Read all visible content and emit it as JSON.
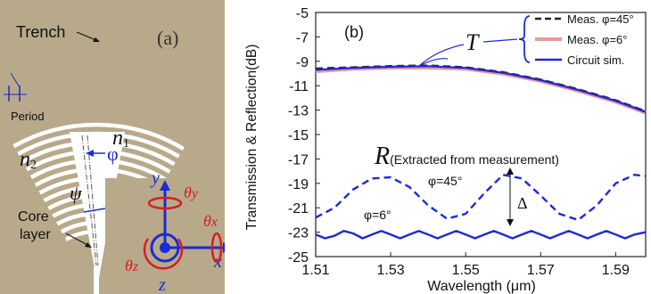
{
  "panel_a": {
    "label": "(a)",
    "trench_label": "Trench",
    "period_label": "Period",
    "n1_main": "n",
    "n1_sub": "1",
    "n2_main": "n",
    "n2_sub": "2",
    "phi_label": "φ",
    "psi_label": "ψ",
    "core_label_line1": "Core",
    "core_label_line2": "layer",
    "axes": {
      "y": "y",
      "x": "x",
      "z": "z",
      "theta": "θ",
      "theta_y_sub": "y",
      "theta_x_sub": "x",
      "theta_z_sub": "z"
    },
    "colors": {
      "background": "#b8a98a",
      "trench": "#ffffff",
      "axis_blue": "#1c2bd6",
      "rotation_red": "#d42020"
    }
  },
  "panel_b": {
    "label": "(b)",
    "T_label": "T",
    "R_label": "R",
    "R_note": "(Extracted from measurement)",
    "phi45_label": "φ=45°",
    "phi6_label": "φ=6°",
    "delta_label": "Δ"
  },
  "chart_data": {
    "type": "line",
    "xlabel": "Wavelength (μm)",
    "ylabel": "Transmission & Reflection(dB)",
    "xlim": [
      1.51,
      1.598
    ],
    "ylim": [
      -25,
      -5
    ],
    "xticks": [
      "1.51",
      "1.53",
      "1.55",
      "1.57",
      "1.59"
    ],
    "yticks": [
      "-5",
      "-7",
      "-9",
      "-11",
      "-13",
      "-15",
      "-17",
      "-19",
      "-21",
      "-23",
      "-25"
    ],
    "legend_position": "top-right",
    "series": [
      {
        "name": "Meas. φ=45°",
        "style": "dashed",
        "color": "#222222",
        "x": [
          1.51,
          1.52,
          1.53,
          1.54,
          1.55,
          1.56,
          1.57,
          1.58,
          1.59,
          1.598
        ],
        "y": [
          -9.6,
          -9.5,
          -9.4,
          -9.35,
          -9.5,
          -9.9,
          -10.5,
          -11.3,
          -12.2,
          -13.1
        ]
      },
      {
        "name": "Meas. φ=6°",
        "style": "solid",
        "color": "#e89a9a",
        "x": [
          1.51,
          1.52,
          1.53,
          1.54,
          1.55,
          1.56,
          1.57,
          1.58,
          1.59,
          1.598
        ],
        "y": [
          -9.8,
          -9.6,
          -9.5,
          -9.5,
          -9.6,
          -10.0,
          -10.6,
          -11.4,
          -12.3,
          -13.2
        ]
      },
      {
        "name": "Circuit sim.",
        "style": "solid",
        "color": "#1c2bd6",
        "x": [
          1.51,
          1.52,
          1.53,
          1.54,
          1.55,
          1.56,
          1.57,
          1.58,
          1.59,
          1.598
        ],
        "y": [
          -9.7,
          -9.55,
          -9.45,
          -9.4,
          -9.55,
          -9.95,
          -10.55,
          -11.35,
          -12.25,
          -13.15
        ]
      },
      {
        "name": "R φ=45°",
        "style": "dashed",
        "color": "#1c2bd6",
        "x": [
          1.51,
          1.515,
          1.52,
          1.525,
          1.53,
          1.535,
          1.54,
          1.545,
          1.55,
          1.555,
          1.56,
          1.565,
          1.57,
          1.575,
          1.58,
          1.585,
          1.59,
          1.595,
          1.598
        ],
        "y": [
          -21.8,
          -21.0,
          -19.5,
          -18.6,
          -18.5,
          -19.3,
          -20.8,
          -21.9,
          -21.5,
          -19.8,
          -18.3,
          -18.6,
          -20.0,
          -21.5,
          -22.0,
          -20.8,
          -19.0,
          -18.3,
          -18.4
        ]
      },
      {
        "name": "R φ=6°",
        "style": "solid",
        "color": "#1c2bd6",
        "x": [
          1.51,
          1.5125,
          1.515,
          1.5175,
          1.52,
          1.5225,
          1.525,
          1.5275,
          1.53,
          1.5325,
          1.535,
          1.5375,
          1.54,
          1.5425,
          1.545,
          1.5475,
          1.55,
          1.5525,
          1.555,
          1.5575,
          1.56,
          1.5625,
          1.565,
          1.5675,
          1.57,
          1.5725,
          1.575,
          1.5775,
          1.58,
          1.5825,
          1.585,
          1.5875,
          1.59,
          1.5925,
          1.595,
          1.598
        ],
        "y": [
          -23.2,
          -23.5,
          -23.3,
          -22.9,
          -23.1,
          -23.5,
          -23.2,
          -22.9,
          -23.2,
          -23.5,
          -23.2,
          -22.9,
          -23.2,
          -23.5,
          -23.2,
          -22.9,
          -23.2,
          -23.5,
          -23.2,
          -22.9,
          -23.2,
          -23.5,
          -23.2,
          -22.9,
          -23.2,
          -23.5,
          -23.2,
          -22.9,
          -23.2,
          -23.5,
          -23.2,
          -22.9,
          -23.2,
          -23.5,
          -23.2,
          -23.0
        ]
      }
    ]
  }
}
